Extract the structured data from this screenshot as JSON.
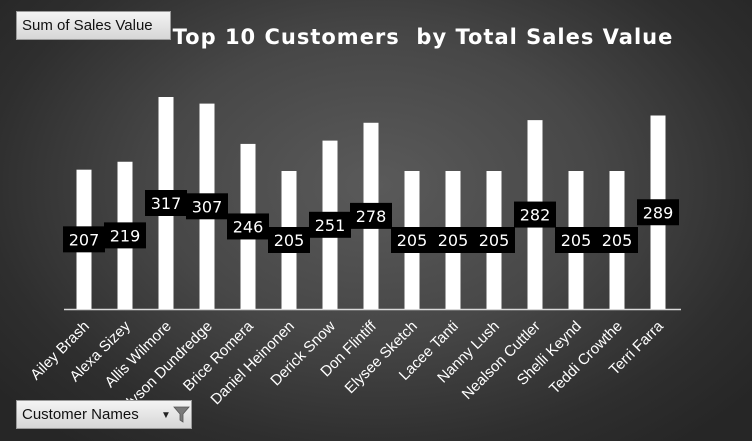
{
  "field_buttons": {
    "value_field": "Sum of Sales Value",
    "axis_field": "Customer Names",
    "axis_icons": [
      "chevron-down-icon",
      "filter-icon"
    ]
  },
  "colors": {
    "bar": "#ffffff",
    "data_label_bg": "#000000",
    "data_label_text": "#ffffff",
    "axis_label_text": "#ffffff"
  },
  "chart_data": {
    "type": "bar",
    "title": "Top 10 Customers  by Total Sales Value",
    "xlabel": "",
    "ylabel": "",
    "categories": [
      "Ailey Brash",
      "Alexa Sizey",
      "Allis Wilmore",
      "Alyson Dundredge",
      "Brice Romera",
      "Daniel Heinonen",
      "Derick Snow",
      "Don Flintiff",
      "Elysee Sketch",
      "Lacee Tanti",
      "Nanny Lush",
      "Nealson Cuttler",
      "Shelli Keynd",
      "Teddi Crowthe",
      "Terri Farra"
    ],
    "values": [
      207,
      219,
      317,
      307,
      246,
      205,
      251,
      278,
      205,
      205,
      205,
      282,
      205,
      205,
      289
    ],
    "ylim": [
      0,
      320
    ],
    "grid": false,
    "legend": "none",
    "data_labels": true
  }
}
